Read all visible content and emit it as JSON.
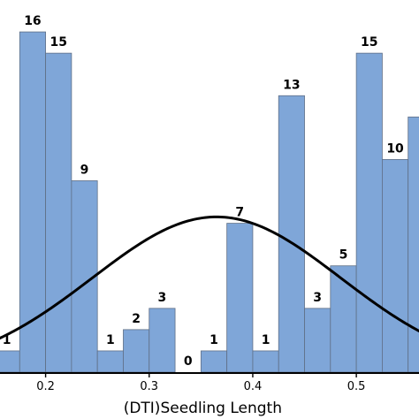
{
  "chart_data": {
    "type": "bar",
    "subtype": "histogram-with-fitted-normal-curve",
    "xlabel": "(DTI)Seedling Length",
    "ylabel": "",
    "bin_width": 0.025,
    "bins_start": [
      0.15,
      0.175,
      0.2,
      0.225,
      0.25,
      0.275,
      0.3,
      0.325,
      0.35,
      0.375,
      0.4,
      0.425,
      0.45,
      0.475,
      0.5,
      0.525,
      0.55
    ],
    "values": [
      1,
      16,
      15,
      9,
      1,
      2,
      3,
      0,
      1,
      7,
      1,
      13,
      3,
      5,
      15,
      10,
      12
    ],
    "data_labels": [
      "1",
      "16",
      "15",
      "9",
      "1",
      "2",
      "3",
      "0",
      "1",
      "7",
      "1",
      "13",
      "3",
      "5",
      "15",
      "10",
      ""
    ],
    "x_ticks": [
      0.2,
      0.3,
      0.4,
      0.5
    ],
    "x_tick_labels": [
      "0.2",
      "0.3",
      "0.4",
      "0.5"
    ],
    "xlim": [
      0.15,
      0.575
    ],
    "ylim": [
      0,
      17.5
    ],
    "normal_curve": {
      "mean": 0.365,
      "sd": 0.12,
      "peak": 7.3
    },
    "grid": false,
    "legend": "none",
    "colors": {
      "bar_fill": "#7fa6d8",
      "bar_edge": "#5f6f86",
      "curve": "#000000"
    }
  }
}
